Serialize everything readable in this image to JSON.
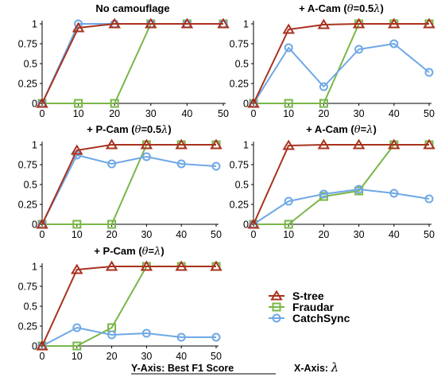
{
  "chart_data": [
    {
      "type": "line",
      "title": "No camouflage",
      "x": [
        0,
        10,
        20,
        30,
        40,
        50
      ],
      "xticks": [
        "0",
        "10",
        "20",
        "30",
        "40",
        "50"
      ],
      "yticks": [
        "0",
        "0.25",
        "0.5",
        "0.75",
        "1"
      ],
      "ylim": [
        0,
        1
      ],
      "series": [
        {
          "name": "S-tree",
          "values": [
            0,
            0.95,
            1,
            1,
            1,
            1
          ]
        },
        {
          "name": "Fraudar",
          "values": [
            0,
            0,
            0,
            1,
            1,
            1
          ]
        },
        {
          "name": "CatchSync",
          "values": [
            0,
            1,
            1,
            1,
            1,
            1
          ]
        }
      ]
    },
    {
      "type": "line",
      "title": "+ A-Cam (θ=0.5λ)",
      "x": [
        0,
        10,
        20,
        30,
        40,
        50
      ],
      "xticks": [
        "0",
        "10",
        "20",
        "30",
        "40",
        "50"
      ],
      "yticks": [
        "0",
        "0.25",
        "0.5",
        "0.75",
        "1"
      ],
      "ylim": [
        0,
        1
      ],
      "series": [
        {
          "name": "S-tree",
          "values": [
            0,
            0.93,
            0.99,
            1,
            1,
            1
          ]
        },
        {
          "name": "Fraudar",
          "values": [
            0,
            0,
            0,
            1,
            1,
            1
          ]
        },
        {
          "name": "CatchSync",
          "values": [
            0,
            0.7,
            0.21,
            0.68,
            0.75,
            0.39
          ]
        }
      ]
    },
    {
      "type": "line",
      "title": "+ P-Cam (θ=0.5λ)",
      "x": [
        0,
        10,
        20,
        30,
        40,
        50
      ],
      "xticks": [
        "0",
        "10",
        "20",
        "30",
        "40",
        "50"
      ],
      "yticks": [
        "0",
        "0.25",
        "0.5",
        "0.75",
        "1"
      ],
      "ylim": [
        0,
        1
      ],
      "series": [
        {
          "name": "S-tree",
          "values": [
            0,
            0.93,
            1,
            1,
            1,
            1
          ]
        },
        {
          "name": "Fraudar",
          "values": [
            0,
            0,
            0,
            1,
            1,
            1
          ]
        },
        {
          "name": "CatchSync",
          "values": [
            0,
            0.87,
            0.76,
            0.85,
            0.76,
            0.73
          ]
        }
      ]
    },
    {
      "type": "line",
      "title": "+ A-Cam (θ=λ)",
      "x": [
        0,
        10,
        20,
        30,
        40,
        50
      ],
      "xticks": [
        "0",
        "10",
        "20",
        "30",
        "40",
        "50"
      ],
      "yticks": [
        "0",
        "0.25",
        "0.5",
        "0.75",
        "1"
      ],
      "ylim": [
        0,
        1
      ],
      "series": [
        {
          "name": "S-tree",
          "values": [
            0,
            0.99,
            1,
            1,
            1,
            1
          ]
        },
        {
          "name": "Fraudar",
          "values": [
            0,
            0,
            0.35,
            0.42,
            1,
            1
          ]
        },
        {
          "name": "CatchSync",
          "values": [
            0,
            0.29,
            0.38,
            0.44,
            0.39,
            0.32
          ]
        }
      ]
    },
    {
      "type": "line",
      "title": "+ P-Cam (θ=λ)",
      "x": [
        0,
        10,
        20,
        30,
        40,
        50
      ],
      "xticks": [
        "0",
        "10",
        "20",
        "30",
        "40",
        "50"
      ],
      "yticks": [
        "0",
        "0.25",
        "0.5",
        "0.75",
        "1"
      ],
      "ylim": [
        0,
        1
      ],
      "series": [
        {
          "name": "S-tree",
          "values": [
            0,
            0.96,
            1,
            1,
            1,
            1
          ]
        },
        {
          "name": "Fraudar",
          "values": [
            0,
            0,
            0.23,
            1,
            1,
            1
          ]
        },
        {
          "name": "CatchSync",
          "values": [
            0,
            0.23,
            0.14,
            0.16,
            0.11,
            0.11
          ]
        }
      ]
    }
  ],
  "legend": {
    "placement": "bottom-right",
    "entries": [
      {
        "label": "S-tree",
        "color": "#a8321e",
        "marker": "triangle"
      },
      {
        "label": "Fraudar",
        "color": "#7ab648",
        "marker": "square"
      },
      {
        "label": "CatchSync",
        "color": "#6fa8e6",
        "marker": "circle"
      }
    ]
  },
  "footer": {
    "yaxis_caption": "Y-Axis: Best F1 Score",
    "xaxis_caption": "X-Axis:",
    "xaxis_symbol": "λ"
  }
}
